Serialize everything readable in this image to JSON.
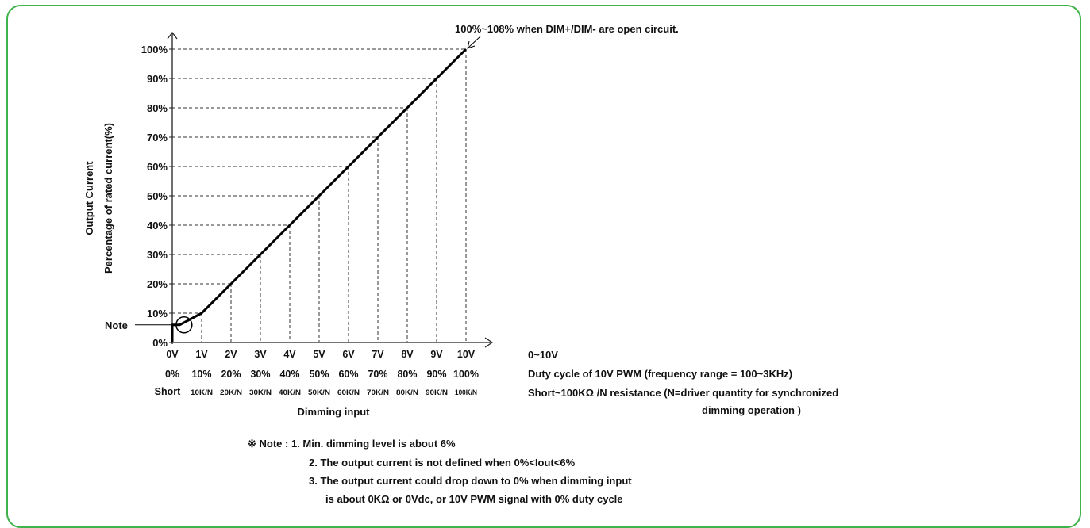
{
  "chart_data": {
    "type": "line",
    "annotation_top": "100%~108% when DIM+/DIM- are open circuit.",
    "ylabel_line1": "Output Current",
    "ylabel_line2": "Percentage of rated current(%)",
    "xlabel": "Dimming input",
    "y_ticks": [
      "0%",
      "10%",
      "20%",
      "30%",
      "40%",
      "50%",
      "60%",
      "70%",
      "80%",
      "90%",
      "100%"
    ],
    "y_values": [
      0,
      10,
      20,
      30,
      40,
      50,
      60,
      70,
      80,
      90,
      100
    ],
    "ylim": [
      0,
      100
    ],
    "x_ticks_voltage": [
      "0V",
      "1V",
      "2V",
      "3V",
      "4V",
      "5V",
      "6V",
      "7V",
      "8V",
      "9V",
      "10V"
    ],
    "x_ticks_pwm": [
      "0%",
      "10%",
      "20%",
      "30%",
      "40%",
      "50%",
      "60%",
      "70%",
      "80%",
      "90%",
      "100%"
    ],
    "x_ticks_resistance": [
      "Short",
      "10K/N",
      "20K/N",
      "30K/N",
      "40K/N",
      "50K/N",
      "60K/N",
      "70K/N",
      "80K/N",
      "90K/N",
      "100K/N"
    ],
    "x_values": [
      0,
      1,
      2,
      3,
      4,
      5,
      6,
      7,
      8,
      9,
      10
    ],
    "xlim": [
      0,
      10
    ],
    "series": [
      {
        "x": [
          0,
          0,
          0.25,
          1,
          2,
          3,
          4,
          5,
          6,
          7,
          8,
          9,
          10
        ],
        "y": [
          0,
          6,
          6,
          10,
          20,
          30,
          40,
          50,
          60,
          70,
          80,
          90,
          100
        ]
      }
    ],
    "note_marker_label": "Note",
    "note_marker_point": {
      "x": 0.4,
      "y": 6
    },
    "grid": "dashed at each tick",
    "row_label_voltage": "0~10V",
    "row_label_pwm": "Duty cycle of 10V PWM (frequency range = 100~3KHz)",
    "row_label_resistance_1": "Short~100KΩ /N resistance (N=driver quantity for synchronized",
    "row_label_resistance_2": "dimming operation )"
  },
  "notes": {
    "line1": "※ Note : 1. Min. dimming level is about 6%",
    "line2": "2. The output current is not defined when 0%<Iout<6%",
    "line3": "3. The output current could drop down to 0% when dimming input",
    "line4": "is about 0KΩ or 0Vdc, or 10V PWM signal with 0% duty cycle"
  }
}
